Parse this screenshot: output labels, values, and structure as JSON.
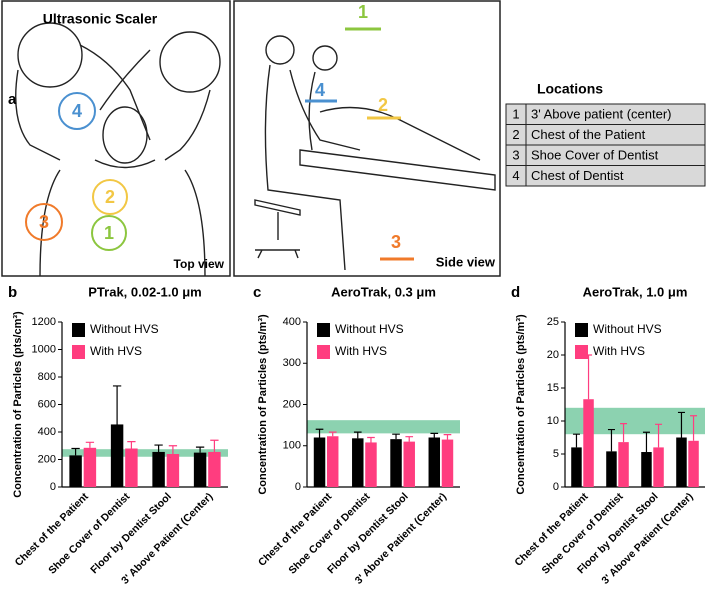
{
  "panel_a": {
    "label": "a",
    "title": "Ultrasonic Scaler",
    "top_view": "Top view",
    "side_view": "Side view",
    "top_markers": [
      "4",
      "2",
      "3",
      "1"
    ],
    "side_markers": [
      "1",
      "4",
      "2",
      "3"
    ]
  },
  "locations": {
    "title": "Locations",
    "rows": [
      [
        "1",
        "3' Above patient (center)"
      ],
      [
        "2",
        "Chest of the Patient"
      ],
      [
        "3",
        "Shoe Cover of Dentist"
      ],
      [
        "4",
        "Chest of Dentist"
      ]
    ]
  },
  "chart_data": [
    {
      "type": "bar",
      "panel": "b",
      "title": "PTrak, 0.02-1.0 μm",
      "y_label": "Concentration of Particles (pts/cm³)",
      "categories": [
        "Chest of the Patient",
        "Shoe Cover of Dentist",
        "Floor by Dentist Stool",
        "3' Above Patient (Center)"
      ],
      "series": [
        {
          "name": "Without HVS",
          "color": "#000000",
          "values": [
            230,
            455,
            255,
            250
          ],
          "errors": [
            50,
            280,
            50,
            40
          ]
        },
        {
          "name": "With HVS",
          "color": "#ff3d7f",
          "values": [
            285,
            280,
            240,
            255
          ],
          "errors": [
            40,
            50,
            60,
            85
          ]
        }
      ],
      "band": [
        220,
        275
      ],
      "band_color": "#5bbf8f",
      "ylim": [
        0,
        1200
      ],
      "yticks": [
        0,
        200,
        400,
        600,
        800,
        1000,
        1200
      ],
      "legend": "upper left"
    },
    {
      "type": "bar",
      "panel": "c",
      "title": "AeroTrak, 0.3 μm",
      "y_label": "Concentration of Particles (pts/m³)",
      "categories": [
        "Chest of the Patient",
        "Shoe Cover of Dentist",
        "Floor by Dentist Stool",
        "3' Above Patient (Center)"
      ],
      "series": [
        {
          "name": "Without HVS",
          "color": "#000000",
          "values": [
            120,
            118,
            116,
            120
          ],
          "errors": [
            20,
            15,
            12,
            10
          ]
        },
        {
          "name": "With HVS",
          "color": "#ff3d7f",
          "values": [
            123,
            108,
            110,
            115
          ],
          "errors": [
            10,
            12,
            12,
            12
          ]
        }
      ],
      "band": [
        130,
        162
      ],
      "band_color": "#5bbf8f",
      "ylim": [
        0,
        400
      ],
      "yticks": [
        0,
        100,
        200,
        300,
        400
      ],
      "legend": "upper left"
    },
    {
      "type": "bar",
      "panel": "d",
      "title": "AeroTrak, 1.0 μm",
      "y_label": "Concentration of Particles (pts/m³)",
      "categories": [
        "Chest of the Patient",
        "Shoe Cover of Dentist",
        "Floor by Dentist Stool",
        "3' Above Patient (Center)"
      ],
      "series": [
        {
          "name": "Without HVS",
          "color": "#000000",
          "values": [
            6,
            5.4,
            5.3,
            7.5
          ],
          "errors": [
            2,
            3.3,
            3,
            3.8
          ]
        },
        {
          "name": "With HVS",
          "color": "#ff3d7f",
          "values": [
            13.3,
            6.8,
            6,
            7
          ],
          "errors": [
            6.7,
            2.8,
            3.5,
            3.8
          ]
        }
      ],
      "band": [
        8,
        12
      ],
      "band_color": "#5bbf8f",
      "ylim": [
        0,
        25
      ],
      "yticks": [
        0,
        5,
        10,
        15,
        20,
        25
      ],
      "legend": "upper left"
    }
  ]
}
